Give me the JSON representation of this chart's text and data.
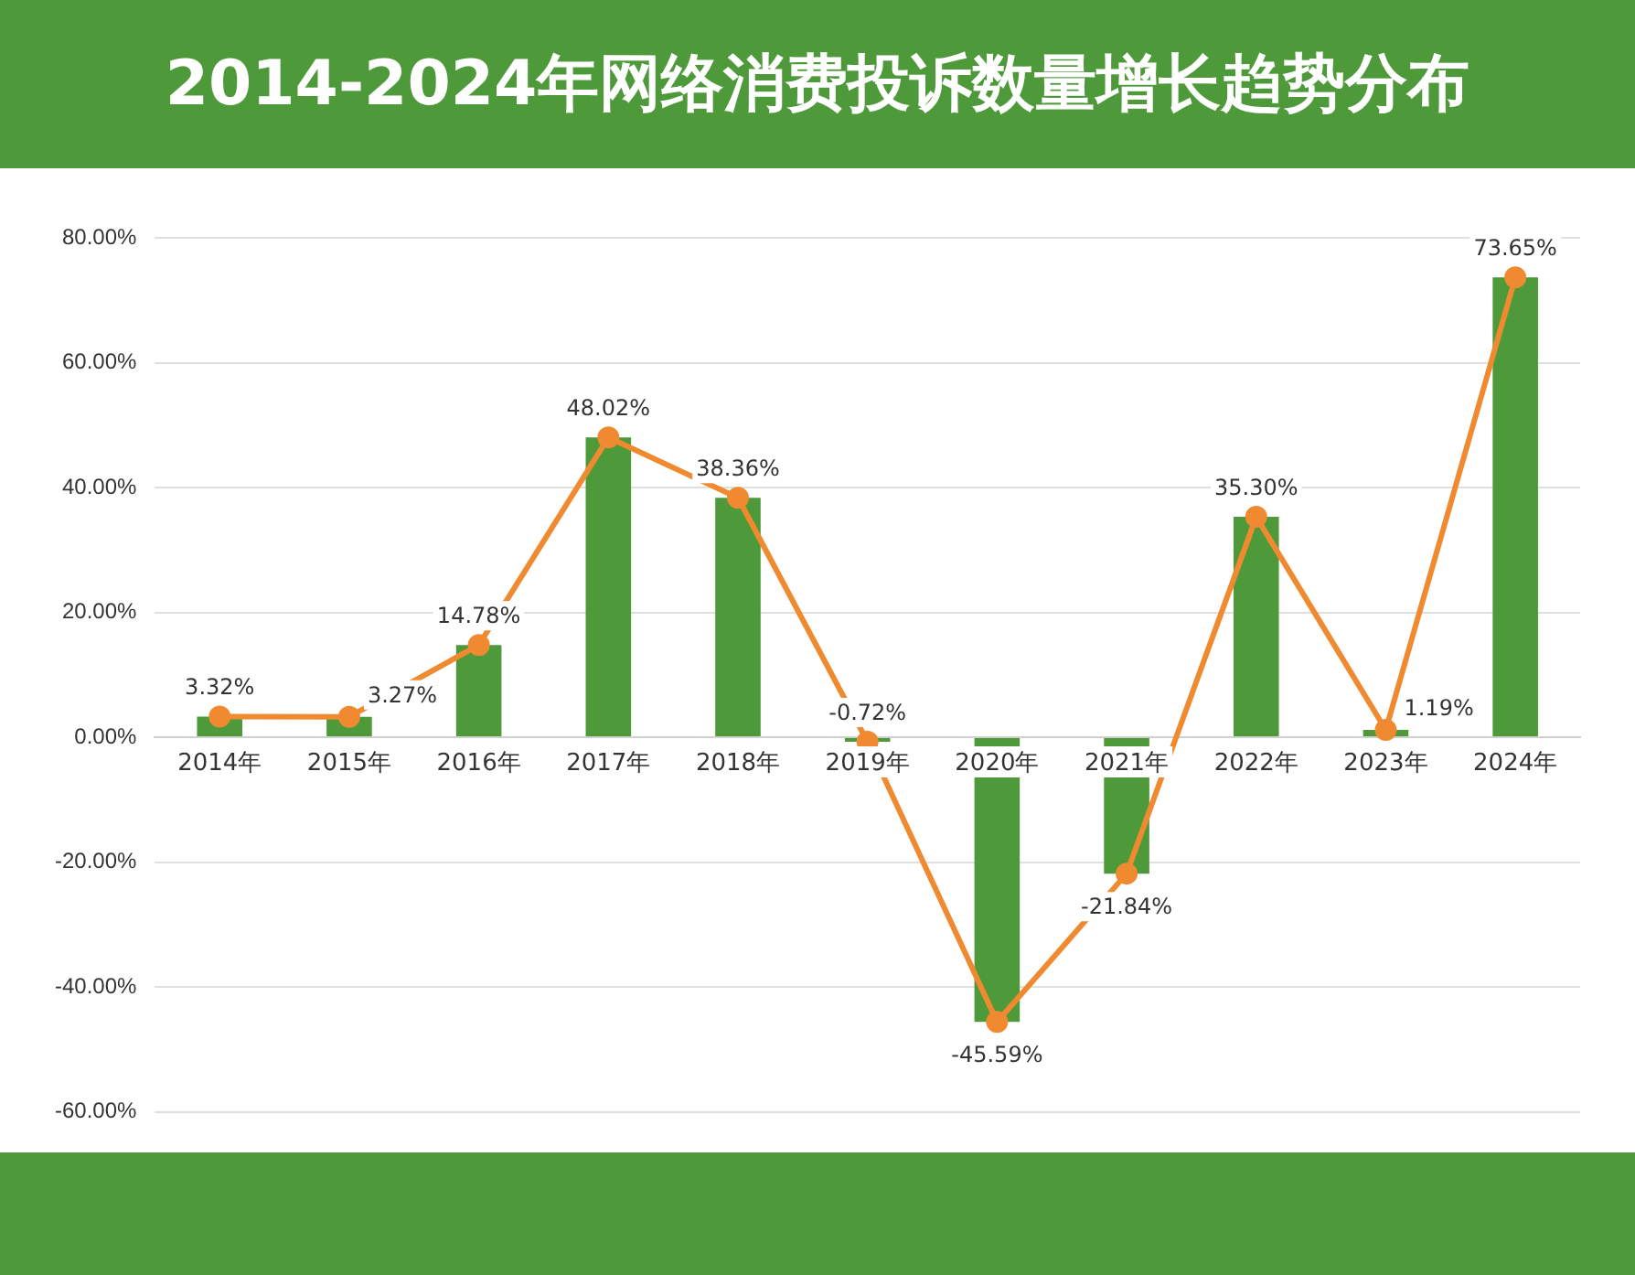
{
  "chart_data": {
    "type": "bar",
    "title": "2014-2024年网络消费投诉数量增长趋势分布",
    "categories": [
      "2014年",
      "2015年",
      "2016年",
      "2017年",
      "2018年",
      "2019年",
      "2020年",
      "2021年",
      "2022年",
      "2023年",
      "2024年"
    ],
    "series": [
      {
        "color": "#4e9a3a",
        "values": [
          3.32,
          3.27,
          14.78,
          48.02,
          38.36,
          -0.72,
          -45.59,
          -21.84,
          35.3,
          1.19,
          73.65
        ]
      },
      {
        "type": "line",
        "color": "#f08a30",
        "values": [
          3.32,
          3.27,
          14.78,
          48.02,
          38.36,
          -0.72,
          -45.59,
          -21.84,
          35.3,
          1.19,
          73.65
        ],
        "value_labels": [
          "3.32%",
          "3.27%",
          "14.78%",
          "48.02%",
          "38.36%",
          "-0.72%",
          "-45.59%",
          "-21.84%",
          "35.30%",
          "1.19%",
          "73.65%"
        ]
      }
    ],
    "ylim": [
      -60,
      80
    ],
    "yticks": [
      {
        "value": -60,
        "label": "-60.00%"
      },
      {
        "value": -40,
        "label": "-40.00%"
      },
      {
        "value": -20,
        "label": "-20.00%"
      },
      {
        "value": 0,
        "label": "0.00%"
      },
      {
        "value": 20,
        "label": "20.00%"
      },
      {
        "value": 40,
        "label": "40.00%"
      },
      {
        "value": 60,
        "label": "60.00%"
      },
      {
        "value": 80,
        "label": "80.00%"
      }
    ],
    "grid": "y",
    "legend": false,
    "marker": "circle",
    "line_style": "solid"
  }
}
